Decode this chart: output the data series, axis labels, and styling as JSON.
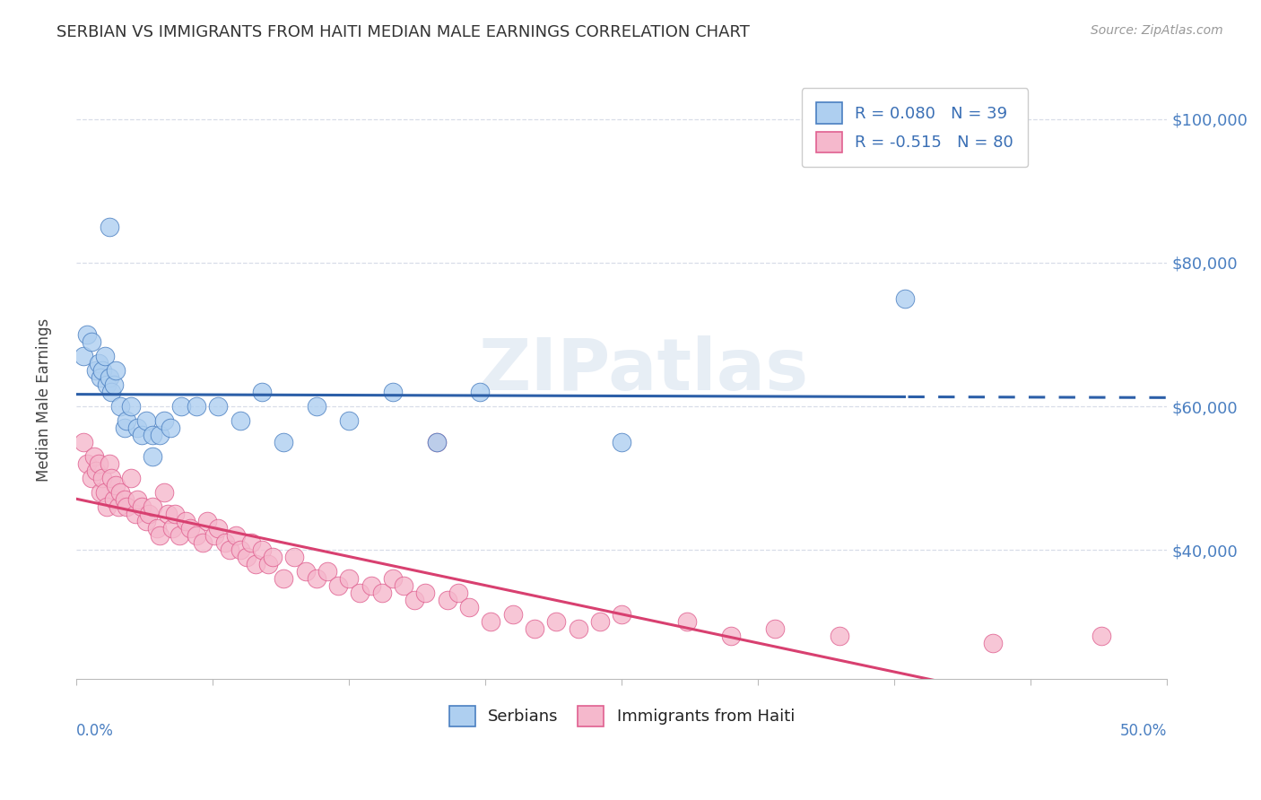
{
  "title": "SERBIAN VS IMMIGRANTS FROM HAITI MEDIAN MALE EARNINGS CORRELATION CHART",
  "source": "Source: ZipAtlas.com",
  "ylabel": "Median Male Earnings",
  "yticks": [
    40000,
    60000,
    80000,
    100000
  ],
  "ytick_labels": [
    "$40,000",
    "$60,000",
    "$80,000",
    "$100,000"
  ],
  "xlim": [
    0.0,
    0.5
  ],
  "ylim": [
    22000,
    108000
  ],
  "series1_label": "Serbians",
  "series1_color": "#aecff0",
  "series1_edge_color": "#4a7fc1",
  "series1_line_color": "#2c5fa8",
  "series2_label": "Immigrants from Haiti",
  "series2_color": "#f5b8cc",
  "series2_edge_color": "#e06090",
  "series2_line_color": "#d84070",
  "watermark": "ZIPatlas",
  "background_color": "#ffffff",
  "grid_color": "#d8dde8",
  "series1_x": [
    0.003,
    0.005,
    0.007,
    0.009,
    0.01,
    0.011,
    0.012,
    0.013,
    0.014,
    0.015,
    0.016,
    0.017,
    0.018,
    0.02,
    0.022,
    0.023,
    0.025,
    0.028,
    0.03,
    0.032,
    0.035,
    0.035,
    0.038,
    0.04,
    0.043,
    0.048,
    0.055,
    0.065,
    0.075,
    0.085,
    0.095,
    0.11,
    0.125,
    0.145,
    0.165,
    0.185,
    0.25,
    0.38,
    0.015
  ],
  "series1_y": [
    67000,
    70000,
    69000,
    65000,
    66000,
    64000,
    65000,
    67000,
    63000,
    64000,
    62000,
    63000,
    65000,
    60000,
    57000,
    58000,
    60000,
    57000,
    56000,
    58000,
    56000,
    53000,
    56000,
    58000,
    57000,
    60000,
    60000,
    60000,
    58000,
    62000,
    55000,
    60000,
    58000,
    62000,
    55000,
    62000,
    55000,
    75000,
    85000
  ],
  "series2_x": [
    0.003,
    0.005,
    0.007,
    0.008,
    0.009,
    0.01,
    0.011,
    0.012,
    0.013,
    0.014,
    0.015,
    0.016,
    0.017,
    0.018,
    0.019,
    0.02,
    0.022,
    0.023,
    0.025,
    0.027,
    0.028,
    0.03,
    0.032,
    0.033,
    0.035,
    0.037,
    0.038,
    0.04,
    0.042,
    0.044,
    0.045,
    0.047,
    0.05,
    0.052,
    0.055,
    0.058,
    0.06,
    0.063,
    0.065,
    0.068,
    0.07,
    0.073,
    0.075,
    0.078,
    0.08,
    0.082,
    0.085,
    0.088,
    0.09,
    0.095,
    0.1,
    0.105,
    0.11,
    0.115,
    0.12,
    0.125,
    0.13,
    0.135,
    0.14,
    0.145,
    0.15,
    0.155,
    0.16,
    0.165,
    0.17,
    0.175,
    0.18,
    0.19,
    0.2,
    0.21,
    0.22,
    0.23,
    0.24,
    0.25,
    0.28,
    0.3,
    0.32,
    0.35,
    0.42,
    0.47
  ],
  "series2_y": [
    55000,
    52000,
    50000,
    53000,
    51000,
    52000,
    48000,
    50000,
    48000,
    46000,
    52000,
    50000,
    47000,
    49000,
    46000,
    48000,
    47000,
    46000,
    50000,
    45000,
    47000,
    46000,
    44000,
    45000,
    46000,
    43000,
    42000,
    48000,
    45000,
    43000,
    45000,
    42000,
    44000,
    43000,
    42000,
    41000,
    44000,
    42000,
    43000,
    41000,
    40000,
    42000,
    40000,
    39000,
    41000,
    38000,
    40000,
    38000,
    39000,
    36000,
    39000,
    37000,
    36000,
    37000,
    35000,
    36000,
    34000,
    35000,
    34000,
    36000,
    35000,
    33000,
    34000,
    55000,
    33000,
    34000,
    32000,
    30000,
    31000,
    29000,
    30000,
    29000,
    30000,
    31000,
    30000,
    28000,
    29000,
    28000,
    27000,
    28000
  ]
}
